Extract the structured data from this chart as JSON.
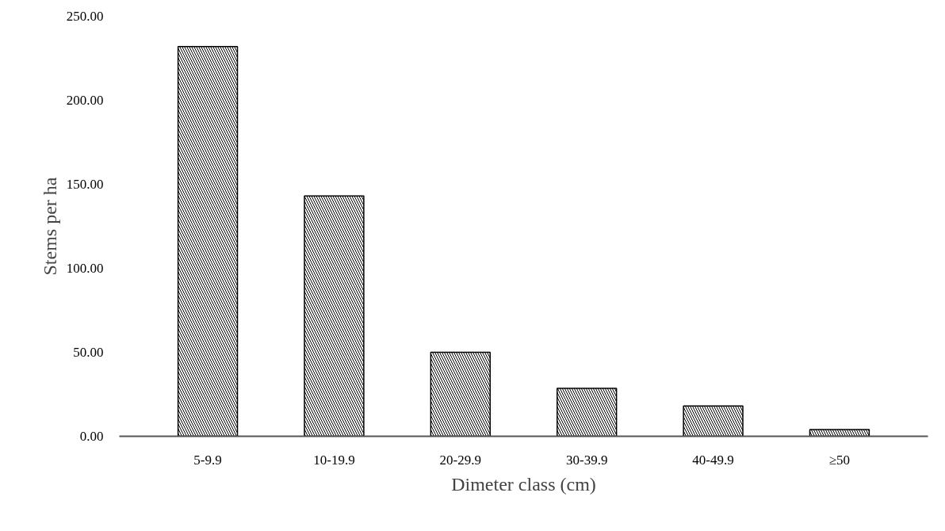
{
  "chart_data": {
    "type": "bar",
    "xlabel": "Dimeter class (cm)",
    "ylabel": "Stems per ha",
    "categories": [
      "5-9.9",
      "10-19.9",
      "20-29.9",
      "30-39.9",
      "40-49.9",
      "≥50"
    ],
    "values": [
      232,
      143,
      50,
      28.5,
      18,
      4
    ],
    "color": "#000000",
    "ylim": [
      0,
      250
    ],
    "yticks": [
      {
        "value": 0,
        "label": "0.00"
      },
      {
        "value": 50,
        "label": "50.00"
      },
      {
        "value": 100,
        "label": "100.00"
      },
      {
        "value": 150,
        "label": "150.00"
      },
      {
        "value": 200,
        "label": "200.00"
      },
      {
        "value": 250,
        "label": "250.00"
      }
    ],
    "grid": false
  }
}
